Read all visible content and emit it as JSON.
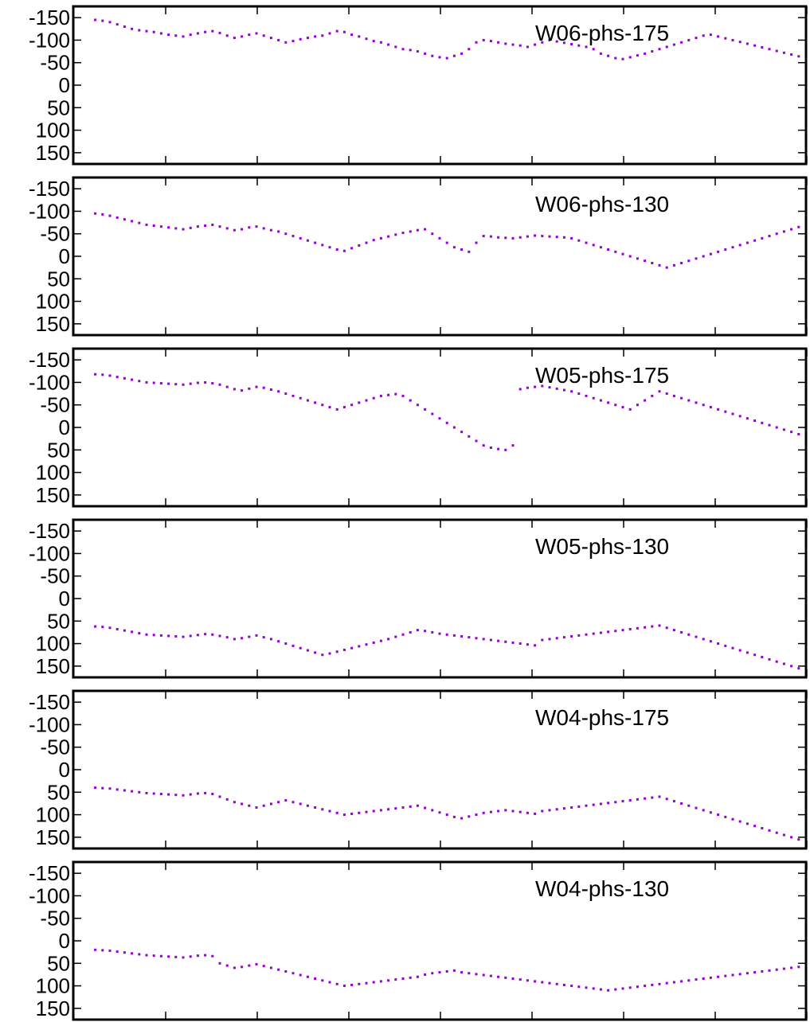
{
  "style": {
    "point_color": "#9400d3",
    "frame_color": "#000000",
    "background": "#ffffff"
  },
  "chart_data": [
    {
      "type": "scatter",
      "label": "W06-phs-175",
      "ylim": [
        175,
        -175
      ],
      "yticks": [
        "-150",
        "-100",
        "-50",
        "0",
        "50",
        "100",
        "150"
      ],
      "xlim": [
        0,
        100
      ],
      "xticks_count": 9,
      "grid": false,
      "x": [
        3,
        4,
        5,
        6,
        7,
        8,
        9,
        10,
        11,
        12,
        13,
        14,
        15,
        16,
        17,
        18,
        19,
        20,
        21,
        22,
        23,
        24,
        25,
        26,
        27,
        28,
        29,
        30,
        31,
        32,
        33,
        34,
        35,
        36,
        37,
        38,
        39,
        40,
        41,
        42,
        43,
        44,
        45,
        46,
        47,
        48,
        49,
        50,
        51,
        52,
        53,
        54,
        55,
        56,
        57,
        58,
        59,
        60,
        61,
        62,
        63,
        64,
        65,
        66,
        67,
        68,
        69,
        70,
        71,
        72,
        73,
        74,
        75,
        76,
        77,
        78,
        79,
        80,
        81,
        82,
        83,
        84,
        85,
        86,
        87,
        88,
        89,
        90,
        91,
        92,
        93,
        94,
        95,
        96,
        97,
        98,
        99
      ],
      "y": [
        -145,
        -143,
        -140,
        -135,
        -130,
        -125,
        -122,
        -120,
        -118,
        -115,
        -112,
        -110,
        -108,
        -112,
        -115,
        -118,
        -120,
        -116,
        -110,
        -105,
        -108,
        -112,
        -115,
        -110,
        -105,
        -100,
        -95,
        -98,
        -102,
        -105,
        -108,
        -110,
        -115,
        -120,
        -118,
        -112,
        -108,
        -103,
        -98,
        -95,
        -90,
        -85,
        -80,
        -78,
        -75,
        -70,
        -65,
        -62,
        -60,
        -65,
        -70,
        -80,
        -95,
        -100,
        -98,
        -95,
        -92,
        -90,
        -88,
        -85,
        -90,
        -95,
        -100,
        -97,
        -94,
        -91,
        -88,
        -85,
        -80,
        -70,
        -65,
        -60,
        -58,
        -62,
        -66,
        -70,
        -75,
        -80,
        -85,
        -90,
        -95,
        -100,
        -105,
        -110,
        -112,
        -108,
        -104,
        -100,
        -96,
        -92,
        -88,
        -84,
        -80,
        -76,
        -72,
        -68,
        -64
      ]
    },
    {
      "type": "scatter",
      "label": "W06-phs-130",
      "ylim": [
        175,
        -175
      ],
      "yticks": [
        "-150",
        "-100",
        "-50",
        "0",
        "50",
        "100",
        "150"
      ],
      "xlim": [
        0,
        100
      ],
      "xticks_count": 9,
      "grid": false,
      "x": [
        3,
        4,
        5,
        6,
        7,
        8,
        9,
        10,
        11,
        12,
        13,
        14,
        15,
        16,
        17,
        18,
        19,
        20,
        21,
        22,
        23,
        24,
        25,
        26,
        27,
        28,
        29,
        30,
        31,
        32,
        33,
        34,
        35,
        36,
        37,
        38,
        39,
        40,
        41,
        42,
        43,
        44,
        45,
        46,
        47,
        48,
        49,
        50,
        51,
        52,
        53,
        54,
        55,
        56,
        57,
        58,
        59,
        60,
        61,
        62,
        63,
        64,
        65,
        66,
        67,
        68,
        69,
        70,
        71,
        72,
        73,
        74,
        75,
        76,
        77,
        78,
        79,
        80,
        81,
        82,
        83,
        84,
        85,
        86,
        87,
        88,
        89,
        90,
        91,
        92,
        93,
        94,
        95,
        96,
        97,
        98,
        99
      ],
      "y": [
        -95,
        -93,
        -90,
        -86,
        -82,
        -78,
        -74,
        -70,
        -68,
        -66,
        -64,
        -62,
        -60,
        -63,
        -66,
        -68,
        -70,
        -66,
        -62,
        -58,
        -60,
        -64,
        -66,
        -62,
        -58,
        -55,
        -50,
        -45,
        -40,
        -35,
        -30,
        -25,
        -20,
        -15,
        -12,
        -18,
        -24,
        -30,
        -36,
        -40,
        -44,
        -48,
        -52,
        -55,
        -58,
        -60,
        -50,
        -40,
        -30,
        -20,
        -15,
        -10,
        -30,
        -45,
        -44,
        -42,
        -41,
        -40,
        -42,
        -44,
        -46,
        -45,
        -44,
        -43,
        -42,
        -40,
        -35,
        -30,
        -25,
        -20,
        -15,
        -10,
        -5,
        0,
        5,
        10,
        15,
        20,
        25,
        20,
        15,
        10,
        5,
        0,
        -5,
        -10,
        -15,
        -20,
        -25,
        -30,
        -35,
        -40,
        -45,
        -50,
        -55,
        -60,
        -65
      ]
    },
    {
      "type": "scatter",
      "label": "W05-phs-175",
      "ylim": [
        175,
        -175
      ],
      "yticks": [
        "-150",
        "-100",
        "-50",
        "0",
        "50",
        "100",
        "150"
      ],
      "xlim": [
        0,
        100
      ],
      "xticks_count": 9,
      "grid": false,
      "x": [
        3,
        4,
        5,
        6,
        7,
        8,
        9,
        10,
        11,
        12,
        13,
        14,
        15,
        16,
        17,
        18,
        19,
        20,
        21,
        22,
        23,
        24,
        25,
        26,
        27,
        28,
        29,
        30,
        31,
        32,
        33,
        34,
        35,
        36,
        37,
        38,
        39,
        40,
        41,
        42,
        43,
        44,
        45,
        46,
        47,
        48,
        49,
        50,
        51,
        52,
        53,
        54,
        55,
        56,
        57,
        58,
        59,
        60,
        61,
        62,
        63,
        64,
        65,
        66,
        67,
        68,
        69,
        70,
        71,
        72,
        73,
        74,
        75,
        76,
        77,
        78,
        79,
        80,
        81,
        82,
        83,
        84,
        85,
        86,
        87,
        88,
        89,
        90,
        91,
        92,
        93,
        94,
        95,
        96,
        97,
        98,
        99
      ],
      "y": [
        -118,
        -117,
        -115,
        -112,
        -109,
        -106,
        -103,
        -100,
        -99,
        -98,
        -97,
        -96,
        -95,
        -97,
        -99,
        -100,
        -98,
        -95,
        -90,
        -85,
        -82,
        -86,
        -90,
        -88,
        -84,
        -80,
        -75,
        -70,
        -65,
        -60,
        -55,
        -50,
        -45,
        -40,
        -45,
        -50,
        -55,
        -60,
        -65,
        -70,
        -72,
        -74,
        -70,
        -60,
        -50,
        -40,
        -30,
        -20,
        -10,
        0,
        10,
        20,
        30,
        40,
        45,
        48,
        50,
        40,
        -85,
        -88,
        -90,
        -92,
        -89,
        -86,
        -83,
        -80,
        -75,
        -70,
        -65,
        -60,
        -55,
        -50,
        -45,
        -40,
        -50,
        -60,
        -70,
        -80,
        -75,
        -70,
        -65,
        -60,
        -55,
        -50,
        -45,
        -40,
        -35,
        -30,
        -25,
        -20,
        -15,
        -10,
        -5,
        0,
        5,
        10,
        15
      ]
    },
    {
      "type": "scatter",
      "label": "W05-phs-130",
      "ylim": [
        175,
        -175
      ],
      "yticks": [
        "-150",
        "-100",
        "-50",
        "0",
        "50",
        "100",
        "150"
      ],
      "xlim": [
        0,
        100
      ],
      "xticks_count": 9,
      "grid": false,
      "x": [
        3,
        4,
        5,
        6,
        7,
        8,
        9,
        10,
        11,
        12,
        13,
        14,
        15,
        16,
        17,
        18,
        19,
        20,
        21,
        22,
        23,
        24,
        25,
        26,
        27,
        28,
        29,
        30,
        31,
        32,
        33,
        34,
        35,
        36,
        37,
        38,
        39,
        40,
        41,
        42,
        43,
        44,
        45,
        46,
        47,
        48,
        49,
        50,
        51,
        52,
        53,
        54,
        55,
        56,
        57,
        58,
        59,
        60,
        61,
        62,
        63,
        64,
        65,
        66,
        67,
        68,
        69,
        70,
        71,
        72,
        73,
        74,
        75,
        76,
        77,
        78,
        79,
        80,
        81,
        82,
        83,
        84,
        85,
        86,
        87,
        88,
        89,
        90,
        91,
        92,
        93,
        94,
        95,
        96,
        97,
        98,
        99
      ],
      "y": [
        62,
        63,
        65,
        68,
        71,
        74,
        77,
        80,
        81,
        82,
        83,
        84,
        85,
        83,
        81,
        79,
        80,
        83,
        86,
        90,
        88,
        85,
        82,
        86,
        90,
        95,
        100,
        105,
        110,
        115,
        120,
        125,
        122,
        118,
        114,
        110,
        106,
        102,
        98,
        94,
        90,
        85,
        80,
        75,
        70,
        72,
        75,
        78,
        80,
        82,
        84,
        86,
        88,
        90,
        92,
        94,
        96,
        98,
        100,
        102,
        104,
        92,
        90,
        88,
        86,
        84,
        82,
        80,
        78,
        76,
        74,
        72,
        70,
        68,
        66,
        64,
        62,
        60,
        65,
        70,
        75,
        80,
        85,
        90,
        95,
        100,
        105,
        110,
        115,
        120,
        125,
        130,
        135,
        140,
        145,
        150,
        155
      ]
    },
    {
      "type": "scatter",
      "label": "W04-phs-175",
      "ylim": [
        175,
        -175
      ],
      "yticks": [
        "-150",
        "-100",
        "-50",
        "0",
        "50",
        "100",
        "150"
      ],
      "xlim": [
        0,
        100
      ],
      "xticks_count": 9,
      "grid": false,
      "x": [
        3,
        4,
        5,
        6,
        7,
        8,
        9,
        10,
        11,
        12,
        13,
        14,
        15,
        16,
        17,
        18,
        19,
        20,
        21,
        22,
        23,
        24,
        25,
        26,
        27,
        28,
        29,
        30,
        31,
        32,
        33,
        34,
        35,
        36,
        37,
        38,
        39,
        40,
        41,
        42,
        43,
        44,
        45,
        46,
        47,
        48,
        49,
        50,
        51,
        52,
        53,
        54,
        55,
        56,
        57,
        58,
        59,
        60,
        61,
        62,
        63,
        64,
        65,
        66,
        67,
        68,
        69,
        70,
        71,
        72,
        73,
        74,
        75,
        76,
        77,
        78,
        79,
        80,
        81,
        82,
        83,
        84,
        85,
        86,
        87,
        88,
        89,
        90,
        91,
        92,
        93,
        94,
        95,
        96,
        97,
        98,
        99
      ],
      "y": [
        40,
        41,
        42,
        44,
        46,
        48,
        50,
        52,
        53,
        54,
        55,
        56,
        57,
        55,
        53,
        52,
        54,
        60,
        66,
        72,
        76,
        80,
        84,
        80,
        76,
        72,
        68,
        72,
        76,
        80,
        84,
        88,
        92,
        96,
        100,
        98,
        96,
        94,
        92,
        90,
        88,
        86,
        84,
        82,
        80,
        85,
        90,
        95,
        100,
        105,
        108,
        104,
        100,
        96,
        94,
        92,
        90,
        92,
        94,
        96,
        98,
        92,
        90,
        88,
        86,
        84,
        82,
        80,
        78,
        76,
        74,
        72,
        70,
        68,
        66,
        64,
        62,
        60,
        65,
        70,
        75,
        80,
        85,
        90,
        95,
        100,
        105,
        110,
        115,
        120,
        125,
        130,
        135,
        140,
        145,
        150,
        155
      ]
    },
    {
      "type": "scatter",
      "label": "W04-phs-130",
      "ylim": [
        175,
        -175
      ],
      "yticks": [
        "-150",
        "-100",
        "-50",
        "0",
        "50",
        "100",
        "150"
      ],
      "xlim": [
        0,
        100
      ],
      "xticks_count": 9,
      "grid": false,
      "x": [
        3,
        4,
        5,
        6,
        7,
        8,
        9,
        10,
        11,
        12,
        13,
        14,
        15,
        16,
        17,
        18,
        19,
        20,
        21,
        22,
        23,
        24,
        25,
        26,
        27,
        28,
        29,
        30,
        31,
        32,
        33,
        34,
        35,
        36,
        37,
        38,
        39,
        40,
        41,
        42,
        43,
        44,
        45,
        46,
        47,
        48,
        49,
        50,
        51,
        52,
        53,
        54,
        55,
        56,
        57,
        58,
        59,
        60,
        61,
        62,
        63,
        64,
        65,
        66,
        67,
        68,
        69,
        70,
        71,
        72,
        73,
        74,
        75,
        76,
        77,
        78,
        79,
        80,
        81,
        82,
        83,
        84,
        85,
        86,
        87,
        88,
        89,
        90,
        91,
        92,
        93,
        94,
        95,
        96,
        97,
        98,
        99
      ],
      "y": [
        20,
        21,
        22,
        24,
        26,
        28,
        30,
        32,
        33,
        34,
        35,
        36,
        37,
        35,
        33,
        32,
        34,
        50,
        55,
        60,
        58,
        55,
        52,
        56,
        60,
        64,
        68,
        72,
        76,
        80,
        84,
        88,
        92,
        96,
        100,
        98,
        96,
        94,
        92,
        90,
        88,
        86,
        84,
        82,
        80,
        75,
        72,
        70,
        68,
        66,
        70,
        72,
        74,
        76,
        78,
        80,
        82,
        84,
        86,
        88,
        90,
        92,
        94,
        96,
        98,
        100,
        102,
        104,
        106,
        108,
        110,
        108,
        106,
        104,
        102,
        100,
        98,
        96,
        94,
        92,
        90,
        88,
        86,
        84,
        82,
        80,
        78,
        76,
        74,
        72,
        70,
        68,
        66,
        64,
        62,
        60,
        58
      ]
    }
  ]
}
